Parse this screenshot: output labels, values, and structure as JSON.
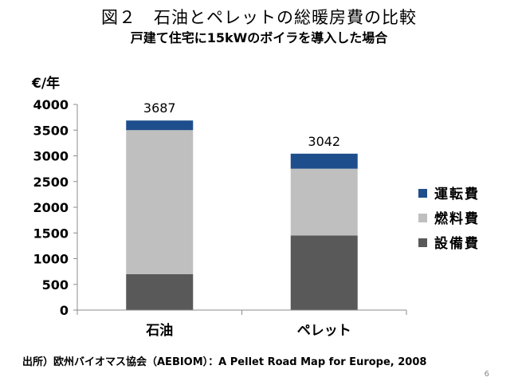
{
  "title": "図２　石油とペレットの総暖房費の比較",
  "subtitle": "戸建て住宅に15kWのボイラを導入した場合",
  "source": "出所）欧州バイオマス協会（AEBIOM）：A Pellet Road Map for Europe, 2008",
  "page_number": "6",
  "chart_data": {
    "type": "bar",
    "stacked": true,
    "ylabel": "€/年",
    "ylim": [
      0,
      4000
    ],
    "yticks": [
      "0",
      "500",
      "1000",
      "1500",
      "2000",
      "2500",
      "3000",
      "3500",
      "4000"
    ],
    "categories": [
      "石油",
      "ペレット"
    ],
    "totals": [
      "3687",
      "3042"
    ],
    "series": [
      {
        "name": "設備費",
        "color": "#595959",
        "values": [
          700,
          1450
        ]
      },
      {
        "name": "燃料費",
        "color": "#bfbfbf",
        "values": [
          2800,
          1300
        ]
      },
      {
        "name": "運転費",
        "color": "#1f4e8c",
        "values": [
          187,
          292
        ]
      }
    ],
    "legend_order": [
      "運転費",
      "燃料費",
      "設備費"
    ],
    "legend_position": "right",
    "grid": false
  }
}
